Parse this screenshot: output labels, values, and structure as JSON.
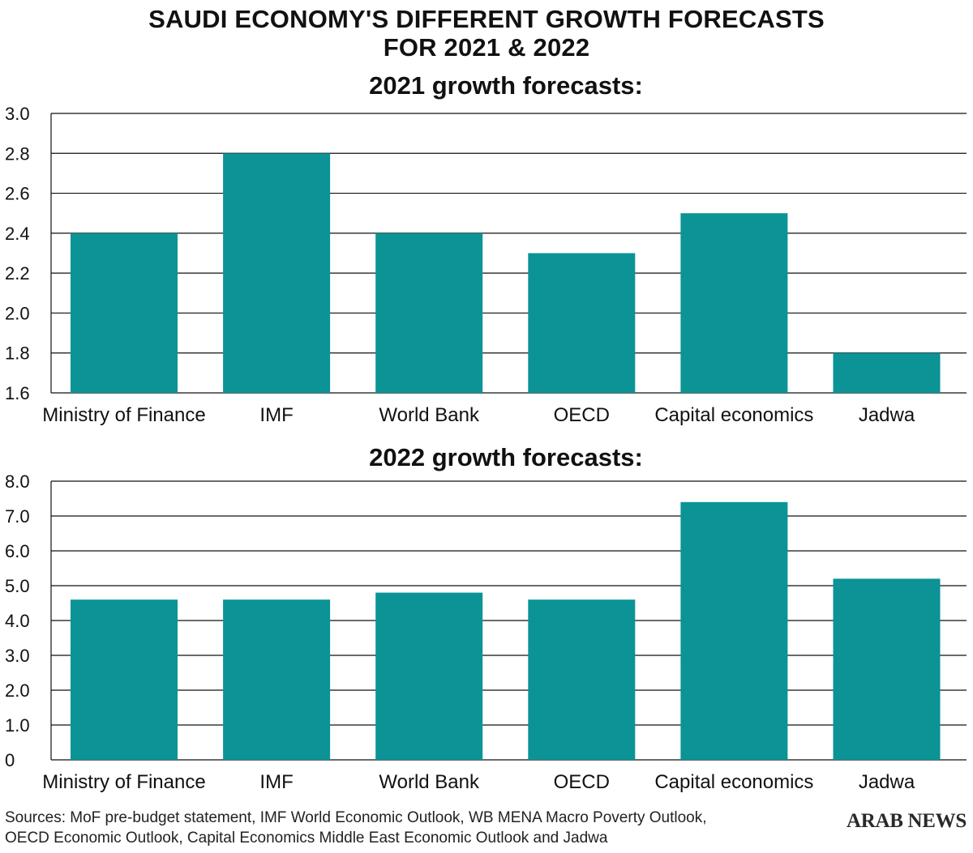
{
  "header": {
    "title_line1": "SAUDI ECONOMY'S DIFFERENT GROWTH FORECASTS",
    "title_line2": "FOR 2021 & 2022"
  },
  "footer": {
    "sources_line1": "Sources: MoF pre-budget statement, IMF World Economic Outlook, WB MENA Macro Poverty Outlook,",
    "sources_line2": "OECD Economic Outlook, Capital Economics Middle East Economic Outlook and Jadwa",
    "brand": "ARAB NEWS"
  },
  "colors": {
    "bar": "#0b9396",
    "grid": "#111111",
    "text": "#111111"
  },
  "chart_data": [
    {
      "type": "bar",
      "title": "2021 growth forecasts:",
      "categories": [
        "Ministry of Finance",
        "IMF",
        "World Bank",
        "OECD",
        "Capital economics",
        "Jadwa"
      ],
      "values": [
        2.4,
        2.8,
        2.4,
        2.3,
        2.5,
        1.8
      ],
      "ylim": [
        1.6,
        3.0
      ],
      "yticks": [
        "1.6",
        "1.8",
        "2.0",
        "2.2",
        "2.4",
        "2.6",
        "2.8",
        "3.0"
      ],
      "grid": true
    },
    {
      "type": "bar",
      "title": "2022 growth forecasts:",
      "categories": [
        "Ministry of Finance",
        "IMF",
        "World Bank",
        "OECD",
        "Capital economics",
        "Jadwa"
      ],
      "values": [
        4.6,
        4.6,
        4.8,
        4.6,
        7.4,
        5.2
      ],
      "ylim": [
        0,
        8.0
      ],
      "yticks": [
        "0",
        "1.0",
        "2.0",
        "3.0",
        "4.0",
        "5.0",
        "6.0",
        "7.0",
        "8.0"
      ],
      "grid": true
    }
  ]
}
